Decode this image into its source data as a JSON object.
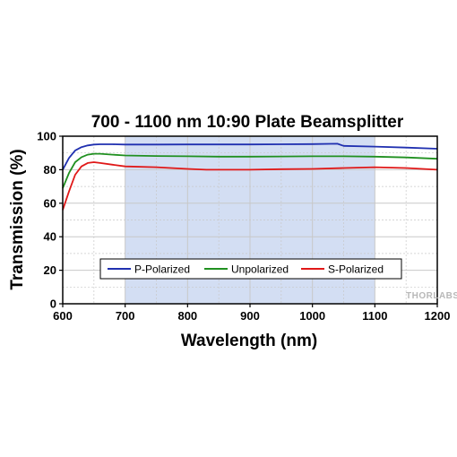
{
  "chart_data": {
    "type": "line",
    "title": "700 - 1100 nm 10:90 Plate Beamsplitter",
    "xlabel": "Wavelength (nm)",
    "ylabel": "Transmission (%)",
    "xlim": [
      600,
      1200
    ],
    "ylim": [
      0,
      100
    ],
    "xticks": [
      600,
      700,
      800,
      900,
      1000,
      1100,
      1200
    ],
    "yticks": [
      0,
      20,
      40,
      60,
      80,
      100
    ],
    "grid": true,
    "highlight_band": [
      700,
      1100
    ],
    "legend_position": "bottom-center",
    "logo_text": "THORLABS",
    "series": [
      {
        "name": "P-Polarized",
        "color": "#2030b0",
        "x": [
          600,
          610,
          620,
          630,
          640,
          650,
          660,
          680,
          700,
          750,
          800,
          850,
          900,
          950,
          1000,
          1040,
          1050,
          1100,
          1150,
          1200
        ],
        "y": [
          80,
          87,
          91.5,
          93.5,
          94.5,
          95,
          95.2,
          95.2,
          95,
          95,
          95.1,
          95.1,
          95.1,
          95.2,
          95.3,
          95.5,
          94.2,
          93.8,
          93.2,
          92.5
        ]
      },
      {
        "name": "Unpolarized",
        "color": "#209020",
        "x": [
          600,
          610,
          620,
          630,
          640,
          650,
          660,
          680,
          700,
          750,
          800,
          850,
          900,
          950,
          1000,
          1050,
          1100,
          1150,
          1200
        ],
        "y": [
          69,
          78,
          84.5,
          87.5,
          89,
          89.5,
          89.5,
          89,
          88.5,
          88.2,
          88,
          87.8,
          87.8,
          87.9,
          88,
          88,
          87.8,
          87.3,
          86.5
        ]
      },
      {
        "name": "S-Polarized",
        "color": "#e01818",
        "x": [
          600,
          610,
          620,
          630,
          640,
          650,
          660,
          680,
          700,
          750,
          800,
          830,
          900,
          950,
          1000,
          1050,
          1100,
          1150,
          1200
        ],
        "y": [
          56,
          67,
          77,
          82,
          84,
          84.5,
          84,
          83,
          82,
          81.5,
          80.5,
          80,
          80,
          80.3,
          80.5,
          81,
          81.5,
          81,
          80
        ]
      }
    ]
  }
}
